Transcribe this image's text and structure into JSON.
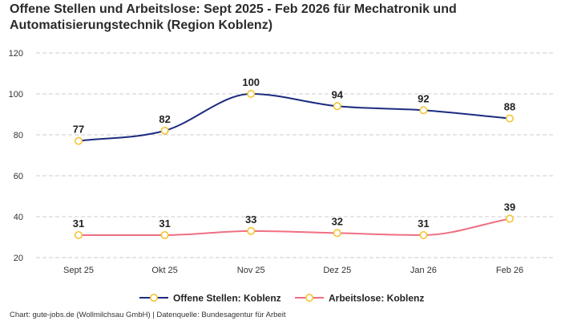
{
  "title": "Offene Stellen und Arbeitslose: Sept 2025 - Feb 2026 für Mechatronik und Automatisierungstechnik (Region Koblenz)",
  "footer": "Chart: gute-jobs.de (Wollmilchsau GmbH) | Datenquelle: Bundesagentur für Arbeit",
  "colors": {
    "offene_stellen": "#1c2b80",
    "arbeitslose": "#ef6f82",
    "marker_stroke": "#f4c430",
    "marker_fill": "#ffffff",
    "grid": "#cccccc"
  },
  "chart_data": {
    "type": "line",
    "categories": [
      "Sept 25",
      "Okt 25",
      "Nov 25",
      "Dez 25",
      "Jan 26",
      "Feb 26"
    ],
    "series": [
      {
        "name": "Offene Stellen: Koblenz",
        "values": [
          77,
          82,
          100,
          94,
          92,
          88
        ]
      },
      {
        "name": "Arbeitslose: Koblenz",
        "values": [
          31,
          31,
          33,
          32,
          31,
          39
        ]
      }
    ],
    "yticks": [
      20,
      40,
      60,
      80,
      100,
      120
    ],
    "ylim": [
      20,
      120
    ],
    "grid": true,
    "legend_position": "bottom-center",
    "data_labels": true
  }
}
